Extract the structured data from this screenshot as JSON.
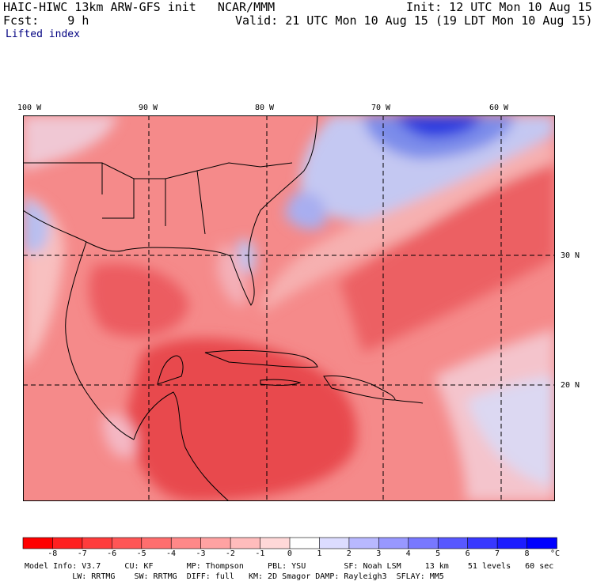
{
  "header": {
    "title": "HAIC-HIWC 13km ARW-GFS init   NCAR/MMM",
    "init": "Init: 12 UTC Mon 10 Aug 15",
    "fcst": "Fcst:    9 h",
    "valid": "Valid: 21 UTC Mon 10 Aug 15 (19 LDT Mon 10 Aug 15)",
    "field": "Lifted index"
  },
  "map": {
    "lon_labels": [
      "100 W",
      "90 W",
      "80 W",
      "70 W",
      "60 W"
    ],
    "lat_labels": [
      "30 N",
      "20 N"
    ],
    "colors": {
      "neg_strong": "#e8404a",
      "neg_mid": "#f0787c",
      "neg_light": "#f8b4b4",
      "pos_light": "#c8ccf4",
      "pos_mid": "#8090ec",
      "pos_strong": "#2030e0",
      "land_line": "#000000",
      "grid_line": "#000000"
    }
  },
  "colorbar": {
    "ticks": [
      "-8",
      "-7",
      "-6",
      "-5",
      "-4",
      "-3",
      "-2",
      "-1",
      "0",
      "1",
      "2",
      "3",
      "4",
      "5",
      "6",
      "7",
      "8"
    ],
    "unit": "°C",
    "colors": [
      "#ff0000",
      "#ff2020",
      "#ff3c3c",
      "#ff5656",
      "#ff6e6e",
      "#ff8888",
      "#ffa2a2",
      "#ffbcbc",
      "#ffd8d8",
      "#ffffff",
      "#dcdcff",
      "#b8b8ff",
      "#9898ff",
      "#7878ff",
      "#5858ff",
      "#3838ff",
      "#1c1cff",
      "#0000ff"
    ]
  },
  "model_info": {
    "line1": "Model Info: V3.7     CU: KF       MP: Thompson     PBL: YSU        SF: Noah LSM     13 km    51 levels   60 sec",
    "line2": "          LW: RRTMG    SW: RRTMG  DIFF: full   KM: 2D Smagor DAMP: Rayleigh3  SFLAY: MM5"
  }
}
